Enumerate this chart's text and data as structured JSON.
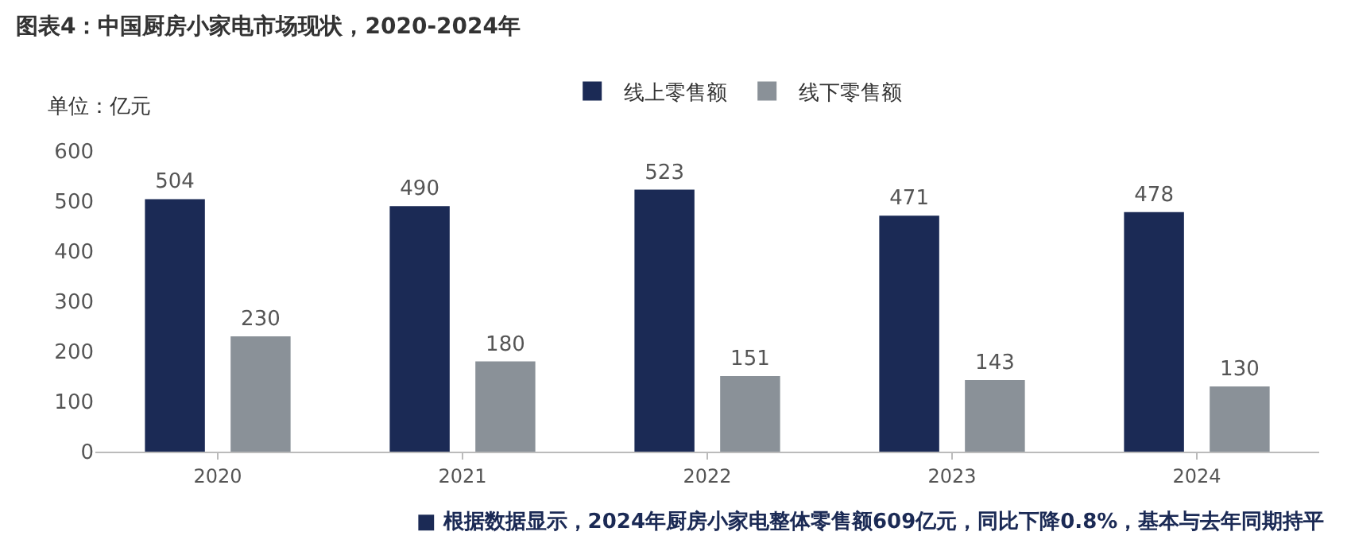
{
  "chart_data": {
    "type": "bar",
    "title": "图表4：中国厨房小家电市场现状，2020-2024年",
    "categories": [
      "2020",
      "2021",
      "2022",
      "2023",
      "2024"
    ],
    "series": [
      {
        "name": "线上零售额",
        "color": "#1b2a55",
        "values": [
          504,
          490,
          523,
          471,
          478
        ]
      },
      {
        "name": "线下零售额",
        "color": "#8a9198",
        "values": [
          230,
          180,
          151,
          143,
          130
        ]
      }
    ],
    "ylim": [
      0,
      600
    ],
    "yticks": [
      0,
      100,
      200,
      300,
      400,
      500,
      600
    ],
    "grid": false,
    "legend": "top",
    "data_labels": true,
    "annotations": [
      "单位：亿元",
      "■ 根据数据显示，2024年厨房小家电整体零售额609亿元，同比下降0.8%，基本与去年同期持平"
    ]
  }
}
